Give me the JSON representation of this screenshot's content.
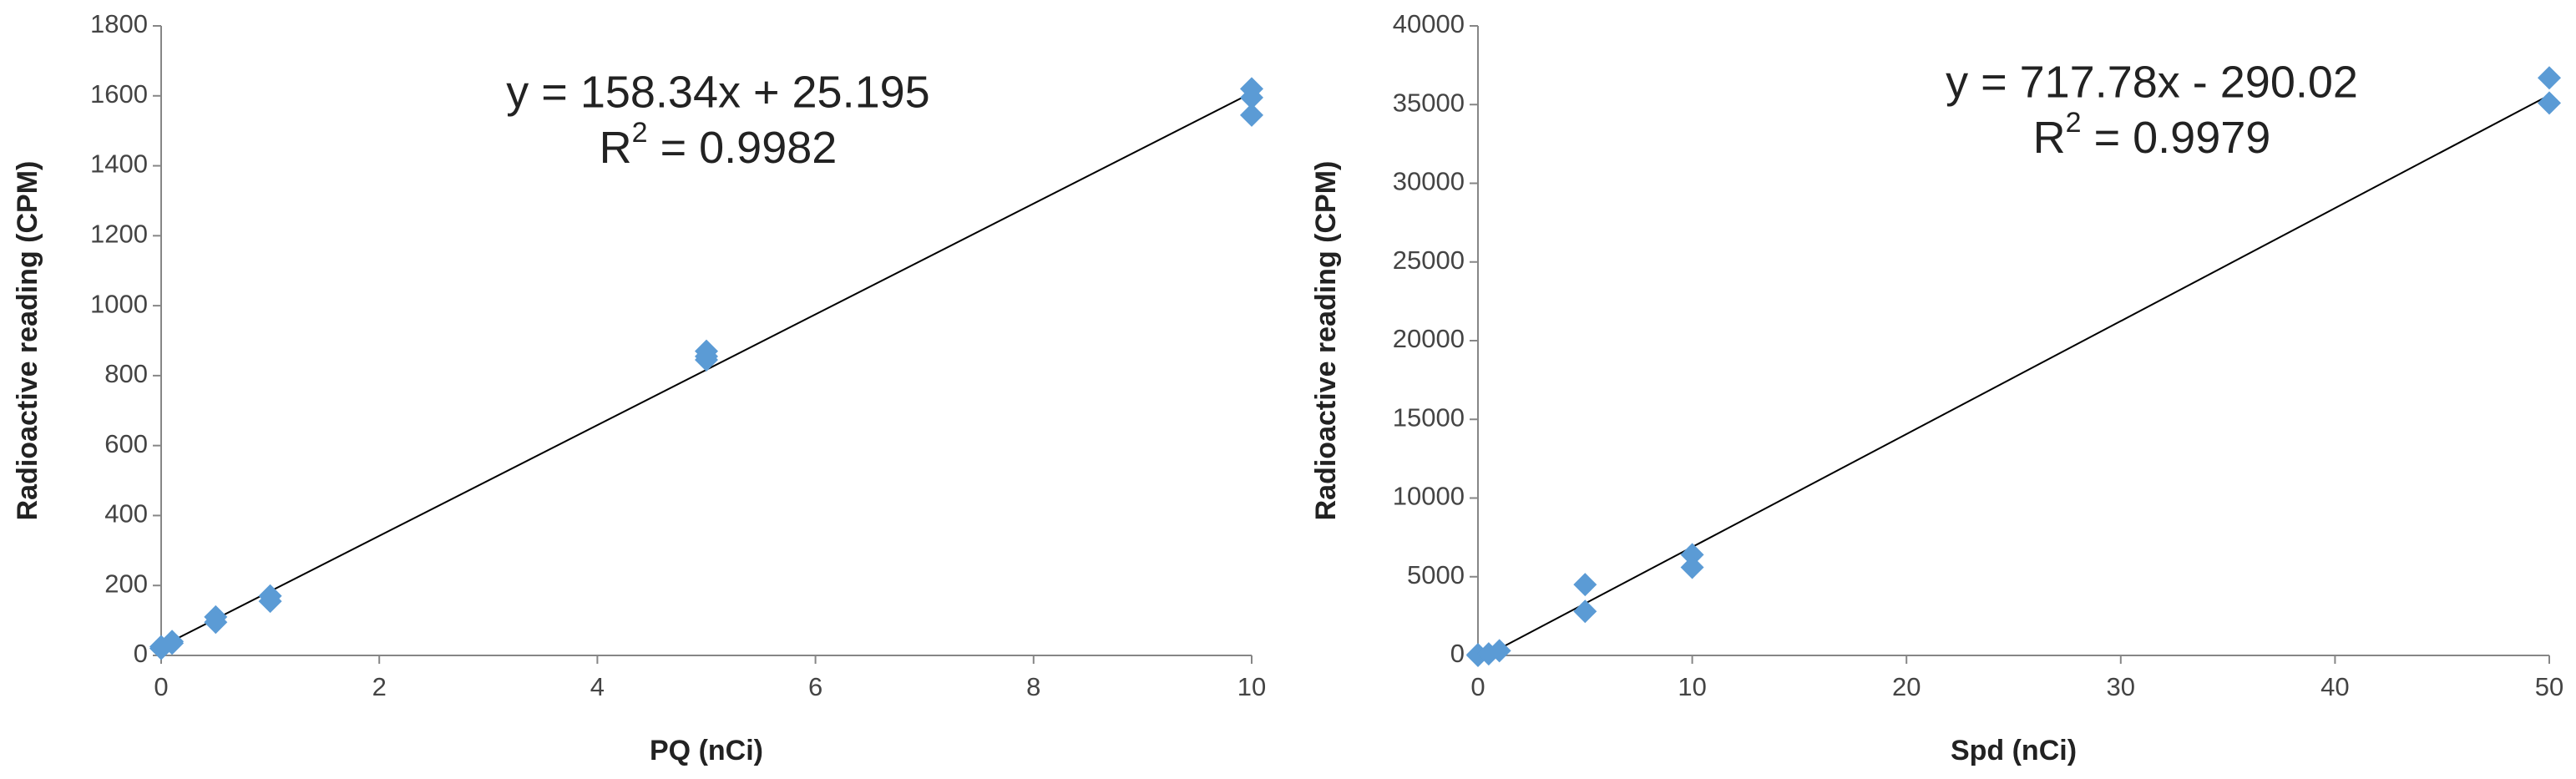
{
  "chart_data": [
    {
      "type": "scatter",
      "xlabel": "PQ (nCi)",
      "ylabel": "Radioactive  reading  (CPM)",
      "x": [
        0,
        0,
        0.1,
        0.1,
        0.5,
        0.5,
        1,
        1,
        5,
        5,
        5,
        10,
        10,
        10
      ],
      "values": [
        25,
        20,
        35,
        40,
        110,
        95,
        170,
        155,
        870,
        845,
        855,
        1620,
        1595,
        1545
      ],
      "color": "#5b9bd5",
      "xlim": [
        0,
        10
      ],
      "xticks": [
        0,
        2,
        4,
        6,
        8,
        10
      ],
      "ylim": [
        0,
        1800
      ],
      "yticks": [
        0,
        200,
        400,
        600,
        800,
        1000,
        1200,
        1400,
        1600,
        1800
      ],
      "trendline": {
        "slope": 158.34,
        "intercept": 25.195,
        "equation": "y = 158.34x + 25.195",
        "r2_base": "R",
        "r2_sup": "2",
        "r2_rest": " = 0.9982"
      }
    },
    {
      "type": "scatter",
      "xlabel": "Spd (nCi)",
      "ylabel": "Radioactive  reading  (CPM)",
      "x": [
        0,
        0,
        0.5,
        1,
        5,
        5,
        10,
        10,
        50,
        50
      ],
      "values": [
        0,
        50,
        100,
        300,
        4500,
        2800,
        6400,
        5600,
        36700,
        35100
      ],
      "color": "#5b9bd5",
      "xlim": [
        0,
        50
      ],
      "xticks": [
        0,
        10,
        20,
        30,
        40,
        50
      ],
      "ylim": [
        0,
        40000
      ],
      "yticks": [
        0,
        5000,
        10000,
        15000,
        20000,
        25000,
        30000,
        35000,
        40000
      ],
      "trendline": {
        "slope": 717.78,
        "intercept": -290.02,
        "equation": "y = 717.78x - 290.02",
        "r2_base": "R",
        "r2_sup": "2",
        "r2_rest": " = 0.9979"
      }
    }
  ]
}
